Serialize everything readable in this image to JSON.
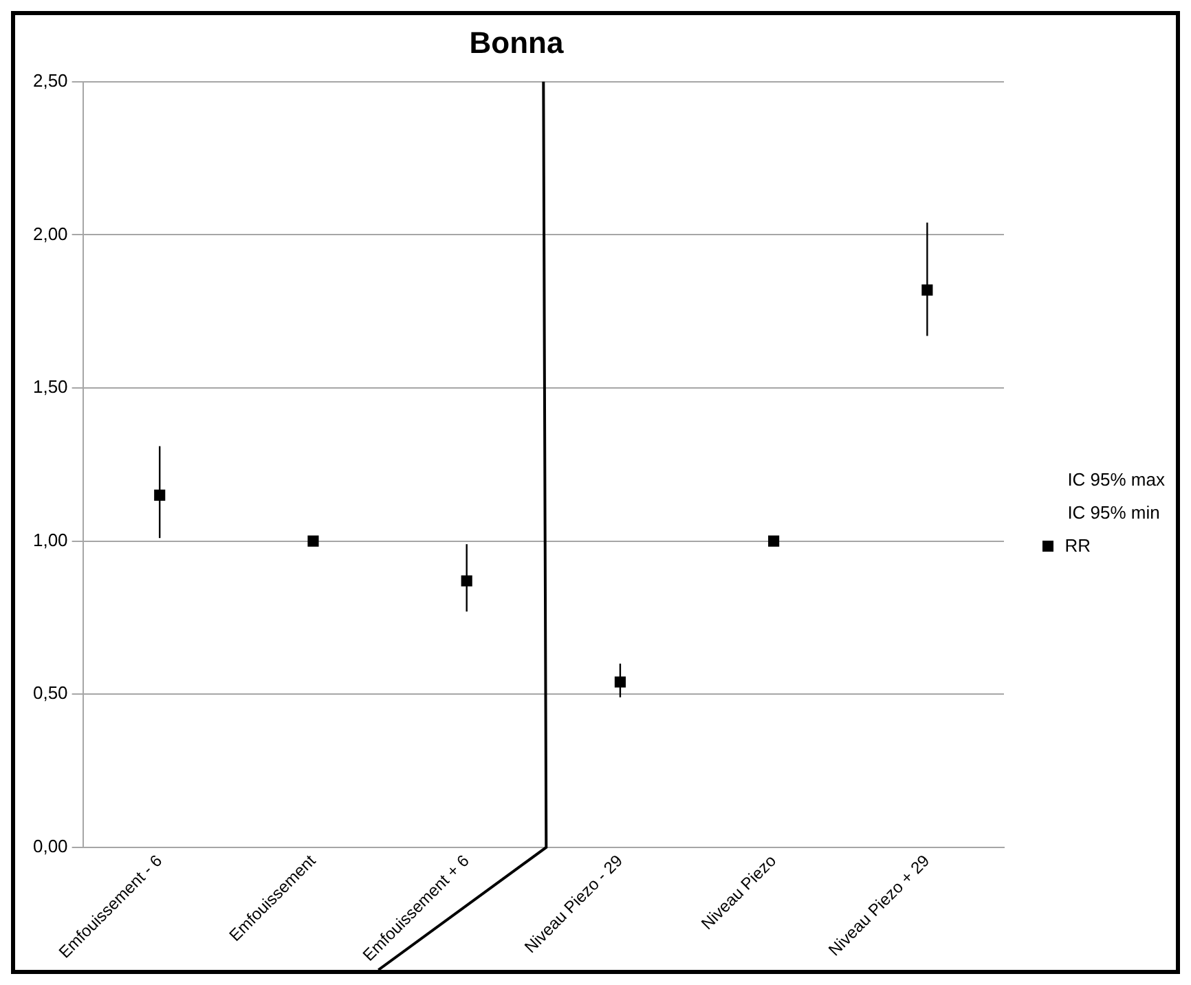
{
  "chart_data": {
    "type": "scatter",
    "title": "Bonna",
    "categories": [
      "Emfouissement - 6",
      "Emfouissement",
      "Emfouissement + 6",
      "Niveau Piezo - 29",
      "Niveau Piezo",
      "Niveau Piezo + 29"
    ],
    "series": [
      {
        "name": "RR",
        "color": "#000000",
        "values": [
          1.15,
          1.0,
          0.87,
          0.54,
          1.0,
          1.82
        ],
        "errors": [
          [
            1.01,
            1.31
          ],
          null,
          [
            0.77,
            0.99
          ],
          [
            0.49,
            0.6
          ],
          null,
          [
            1.67,
            2.04
          ]
        ]
      }
    ],
    "ylim": [
      0,
      2.5
    ],
    "yticks": [
      {
        "value": 0,
        "label": "0,00"
      },
      {
        "value": 0.5,
        "label": "0,50"
      },
      {
        "value": 1,
        "label": "1,00"
      },
      {
        "value": 1.5,
        "label": "1,50"
      },
      {
        "value": 2,
        "label": "2,00"
      },
      {
        "value": 2.5,
        "label": "2,50"
      }
    ],
    "grid": "y",
    "legend": "right",
    "marker": "square",
    "annotations": [
      "IC 95% max",
      "IC 95% min"
    ]
  }
}
